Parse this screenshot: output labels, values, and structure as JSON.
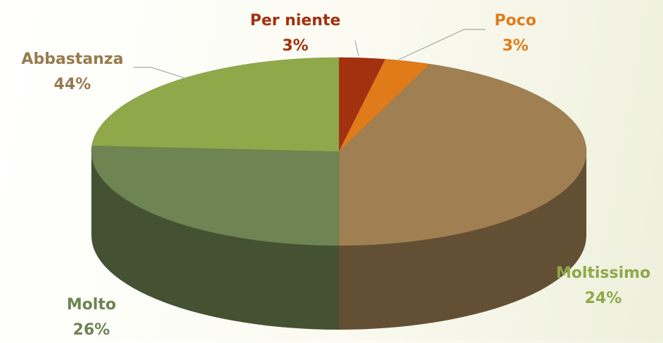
{
  "chart_data": {
    "type": "pie3d",
    "categories": [
      "Per niente",
      "Poco",
      "Abbastanza",
      "Molto",
      "Moltissimo"
    ],
    "values": [
      3,
      3,
      44,
      26,
      24
    ],
    "value_labels": [
      "3%",
      "3%",
      "44%",
      "26%",
      "24%"
    ],
    "colors": [
      "#a3300f",
      "#e07b1a",
      "#a08052",
      "#6e8452",
      "#8fa84a"
    ]
  }
}
